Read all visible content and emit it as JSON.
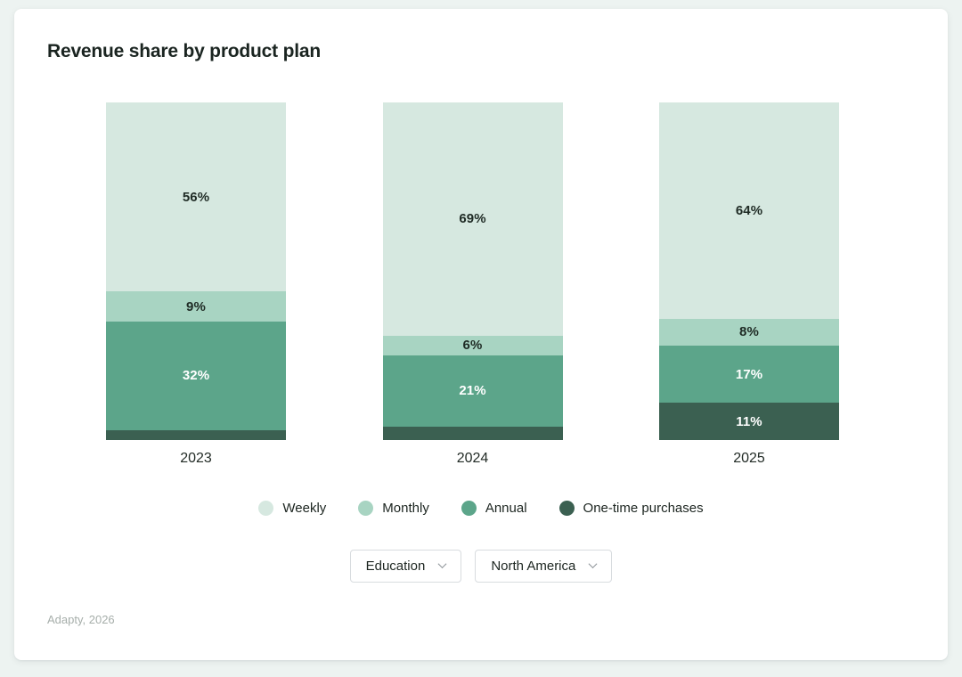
{
  "title": "Revenue share by product plan",
  "chart_data": {
    "type": "stacked-bar",
    "unit": "%",
    "categories": [
      "2023",
      "2024",
      "2025"
    ],
    "series": [
      {
        "name": "Weekly",
        "color": "#d6e8e0",
        "values": [
          56,
          69,
          64
        ],
        "data_labels": [
          "56%",
          "69%",
          "64%"
        ],
        "label_color": "#1f2b25"
      },
      {
        "name": "Monthly",
        "color": "#a8d4c2",
        "values": [
          9,
          6,
          8
        ],
        "data_labels": [
          "9%",
          "6%",
          "8%"
        ],
        "label_color": "#1f2b25"
      },
      {
        "name": "Annual",
        "color": "#5ca58a",
        "values": [
          32,
          21,
          17
        ],
        "data_labels": [
          "32%",
          "21%",
          "17%"
        ],
        "label_color": "#ffffff"
      },
      {
        "name": "One-time purchases",
        "color": "#3b6051",
        "values": [
          3,
          4,
          11
        ],
        "data_labels": [
          "",
          "",
          "11%"
        ],
        "label_color": "#ffffff"
      }
    ],
    "ylim": [
      0,
      100
    ],
    "grid": false,
    "legend_position": "bottom"
  },
  "filters": [
    {
      "value": "Education",
      "icon": "chevron-down"
    },
    {
      "value": "North America",
      "icon": "chevron-down"
    }
  ],
  "footer": {
    "source": "Adapty, 2026"
  },
  "colors": {
    "page_background": "#edf3f1",
    "card_background": "#ffffff",
    "text_primary": "#1c2520",
    "text_muted": "#a6aeaa",
    "filter_border": "#d8dcdf"
  }
}
